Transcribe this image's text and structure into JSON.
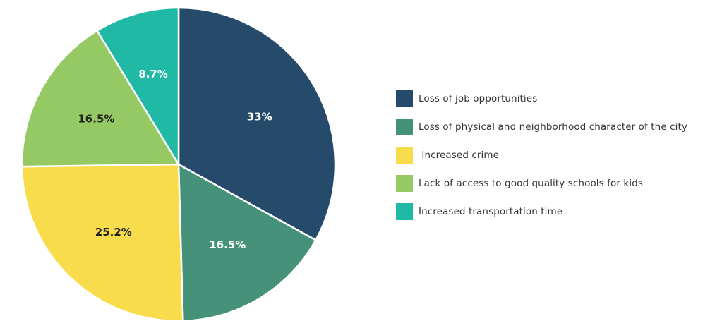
{
  "chart_data": {
    "type": "pie",
    "title": "",
    "categories": [
      "Loss of job opportunities",
      "Loss of physical and neighborhood character of the city",
      " Increased crime",
      "Lack of access to good quality schools for kids",
      "Increased transportation time"
    ],
    "values": [
      33,
      16.5,
      25.2,
      16.5,
      8.7
    ],
    "labels": [
      "33%",
      "16.5%",
      "25.2%",
      "16.5%",
      "8.7%"
    ],
    "colors": [
      "#264a69",
      "#45917a",
      "#f9dc4c",
      "#95c963",
      "#20b9a5"
    ],
    "label_colors": [
      "#ffffff",
      "#ffffff",
      "#222222",
      "#222222",
      "#ffffff"
    ],
    "start_angle_deg": 0,
    "direction": "clockwise",
    "legend_position": "right"
  }
}
